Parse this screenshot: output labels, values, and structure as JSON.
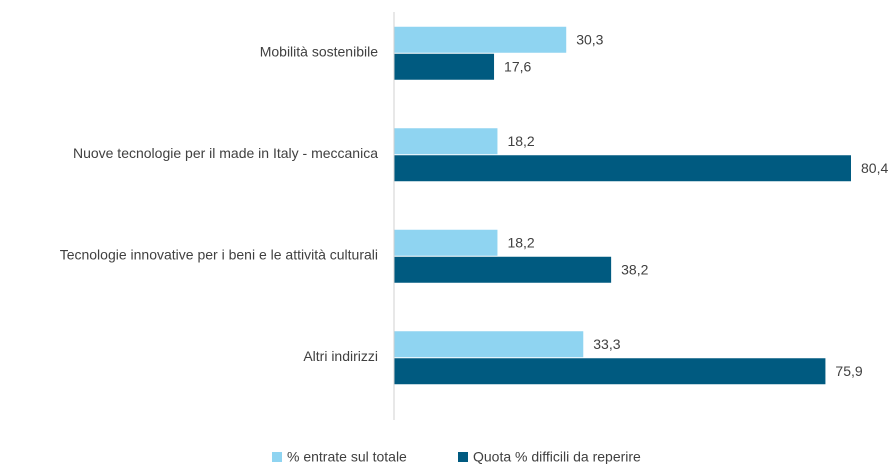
{
  "chart_data": {
    "type": "hbar",
    "categories": [
      "Mobilità sostenibile",
      "Nuove tecnologie per il made in Italy - meccanica",
      "Tecnologie innovative per i beni e le attività culturali",
      "Altri indirizzi"
    ],
    "series": [
      {
        "name": "% entrate sul totale",
        "color": "#8fd4f1",
        "values": [
          30.3,
          18.2,
          18.2,
          33.3
        ],
        "value_labels": [
          "30,3",
          "18,2",
          "18,2",
          "33,3"
        ]
      },
      {
        "name": "Quota % difficili da reperire",
        "color": "#005a80",
        "values": [
          17.6,
          80.4,
          38.2,
          75.9
        ],
        "value_labels": [
          "17,6",
          "80,4",
          "38,2",
          "75,9"
        ]
      }
    ],
    "legend": "bottom"
  }
}
